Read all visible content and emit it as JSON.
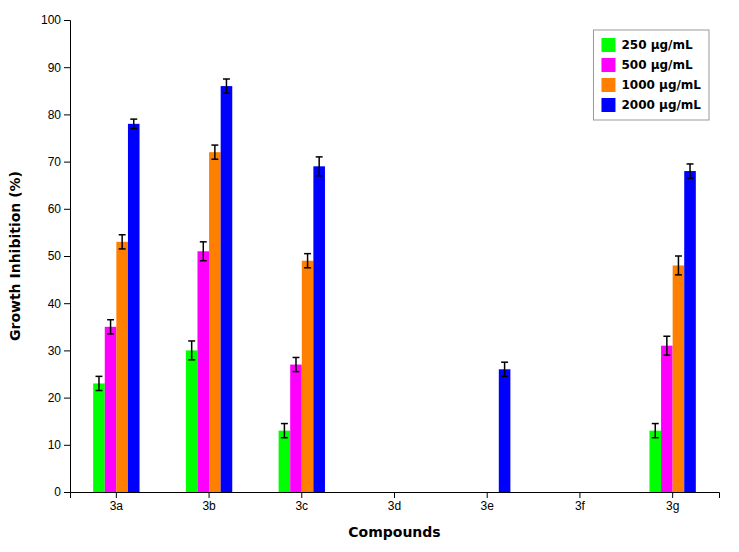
{
  "chart_data": {
    "type": "bar",
    "xlabel": "Compounds",
    "ylabel": "Growth Inhibition (%)",
    "categories": [
      "3a",
      "3b",
      "3c",
      "3d",
      "3e",
      "3f",
      "3g"
    ],
    "series": [
      {
        "name": "250 μg/mL",
        "color": "#00ff00",
        "values": [
          23,
          30,
          13,
          0,
          0,
          0,
          13
        ],
        "errors": [
          1.5,
          2.0,
          1.5,
          0,
          0,
          0,
          1.5
        ]
      },
      {
        "name": "500 μg/mL",
        "color": "#ff00ff",
        "values": [
          35,
          51,
          27,
          0,
          0,
          0,
          31
        ],
        "errors": [
          1.5,
          2.0,
          1.5,
          0,
          0,
          0,
          2.0
        ]
      },
      {
        "name": "1000 μg/mL",
        "color": "#ff8000",
        "values": [
          53,
          72,
          49,
          0,
          0,
          0,
          48
        ],
        "errors": [
          1.5,
          1.5,
          1.5,
          0,
          0,
          0,
          2.0
        ]
      },
      {
        "name": "2000 μg/mL",
        "color": "#0000ff",
        "values": [
          78,
          86,
          69,
          0,
          26,
          0,
          68
        ],
        "errors": [
          1.0,
          1.5,
          2.0,
          0,
          1.5,
          0,
          1.5
        ]
      }
    ],
    "ylim": [
      0,
      100
    ],
    "yticks": [
      0,
      10,
      20,
      30,
      40,
      50,
      60,
      70,
      80,
      90,
      100
    ],
    "grid": false,
    "legend": "upper right"
  }
}
